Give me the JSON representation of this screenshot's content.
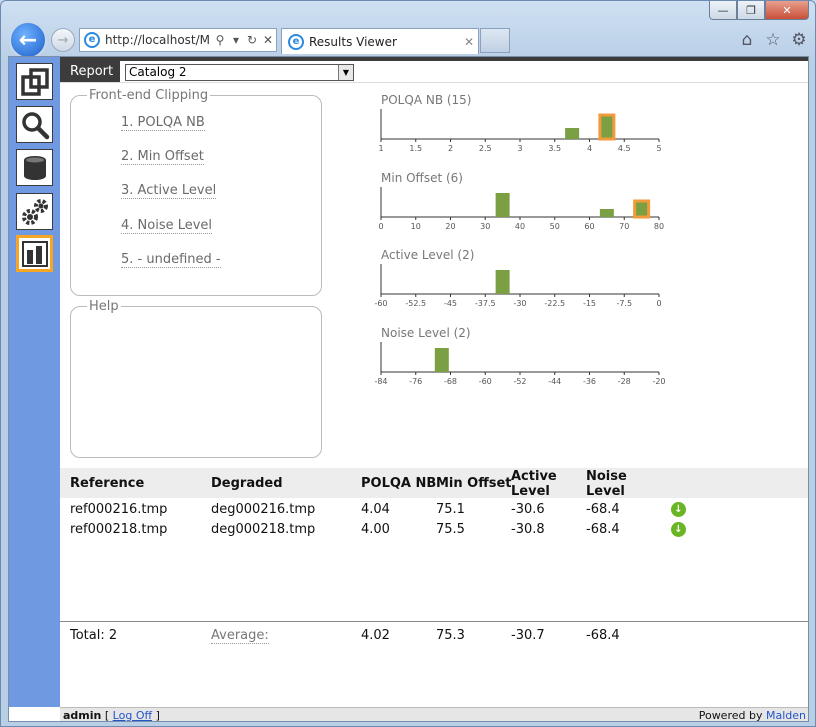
{
  "browser": {
    "address": "http://localhost/M",
    "tab_title": "Results Viewer",
    "window_controls": [
      "minimize-icon",
      "restore-icon",
      "close-icon"
    ],
    "right_icons": [
      "home-icon",
      "favorites-star-icon",
      "settings-gear-icon"
    ]
  },
  "report": {
    "label": "Report",
    "catalog_value": "Catalog 2"
  },
  "clipping": {
    "legend": "Front-end Clipping",
    "items": [
      "1. POLQA NB",
      "2. Min Offset",
      "3. Active Level",
      "4. Noise Level",
      "5. - undefined -"
    ]
  },
  "help": {
    "legend": "Help"
  },
  "sidebar": {
    "icons": [
      "copy-icon",
      "search-icon",
      "database-icon",
      "gears-icon",
      "bar-chart-icon"
    ]
  },
  "colors": {
    "bar": "#7aa043",
    "highlight": "#f39a3b",
    "sidebar": "#6f9ae2"
  },
  "chart_data": [
    {
      "type": "bar",
      "title": "POLQA NB (15)",
      "ticks": [
        "1",
        "1.5",
        "2",
        "2.5",
        "3",
        "3.5",
        "4",
        "4.5",
        "5"
      ],
      "xlim": [
        1,
        5
      ],
      "bins": [
        {
          "center": 3.75,
          "height": 0.45,
          "highlight": false
        },
        {
          "center": 4.25,
          "height": 1.0,
          "highlight": true
        }
      ]
    },
    {
      "type": "bar",
      "title": "Min Offset (6)",
      "ticks": [
        "0",
        "10",
        "20",
        "30",
        "40",
        "50",
        "60",
        "70",
        "80"
      ],
      "xlim": [
        0,
        80
      ],
      "bins": [
        {
          "center": 35,
          "height": 1.0,
          "highlight": false
        },
        {
          "center": 65,
          "height": 0.33,
          "highlight": false
        },
        {
          "center": 75,
          "height": 0.67,
          "highlight": true
        }
      ]
    },
    {
      "type": "bar",
      "title": "Active Level (2)",
      "ticks": [
        "-60",
        "-52.5",
        "-45",
        "-37.5",
        "-30",
        "-22.5",
        "-15",
        "-7.5",
        "0"
      ],
      "xlim": [
        -60,
        0
      ],
      "bins": [
        {
          "center": -33.75,
          "height": 1.0,
          "highlight": false
        }
      ]
    },
    {
      "type": "bar",
      "title": "Noise Level (2)",
      "ticks": [
        "-84",
        "-76",
        "-68",
        "-60",
        "-52",
        "-44",
        "-36",
        "-28",
        "-20"
      ],
      "xlim": [
        -84,
        -20
      ],
      "bins": [
        {
          "center": -70,
          "height": 1.0,
          "highlight": false
        }
      ]
    }
  ],
  "table": {
    "headers": {
      "reference": "Reference",
      "degraded": "Degraded",
      "polqa": "POLQA NB",
      "min_offset": "Min Offset",
      "active_1": "Active",
      "active_2": "Level",
      "noise_1": "Noise",
      "noise_2": "Level"
    },
    "rows": [
      {
        "reference": "ref000216.tmp",
        "degraded": "deg000216.tmp",
        "polqa": "4.04",
        "min_offset": "75.1",
        "active": "-30.6",
        "noise": "-68.4"
      },
      {
        "reference": "ref000218.tmp",
        "degraded": "deg000218.tmp",
        "polqa": "4.00",
        "min_offset": "75.5",
        "active": "-30.8",
        "noise": "-68.4"
      }
    ],
    "total": {
      "label": "Total: 2",
      "average_label": "Average:",
      "polqa": "4.02",
      "min_offset": "75.3",
      "active": "-30.7",
      "noise": "-68.4"
    }
  },
  "status": {
    "user": "admin",
    "bracket_open": "[",
    "logoff": "Log Off",
    "bracket_close": "]",
    "powered_by": "Powered by",
    "brand": "Malden"
  }
}
